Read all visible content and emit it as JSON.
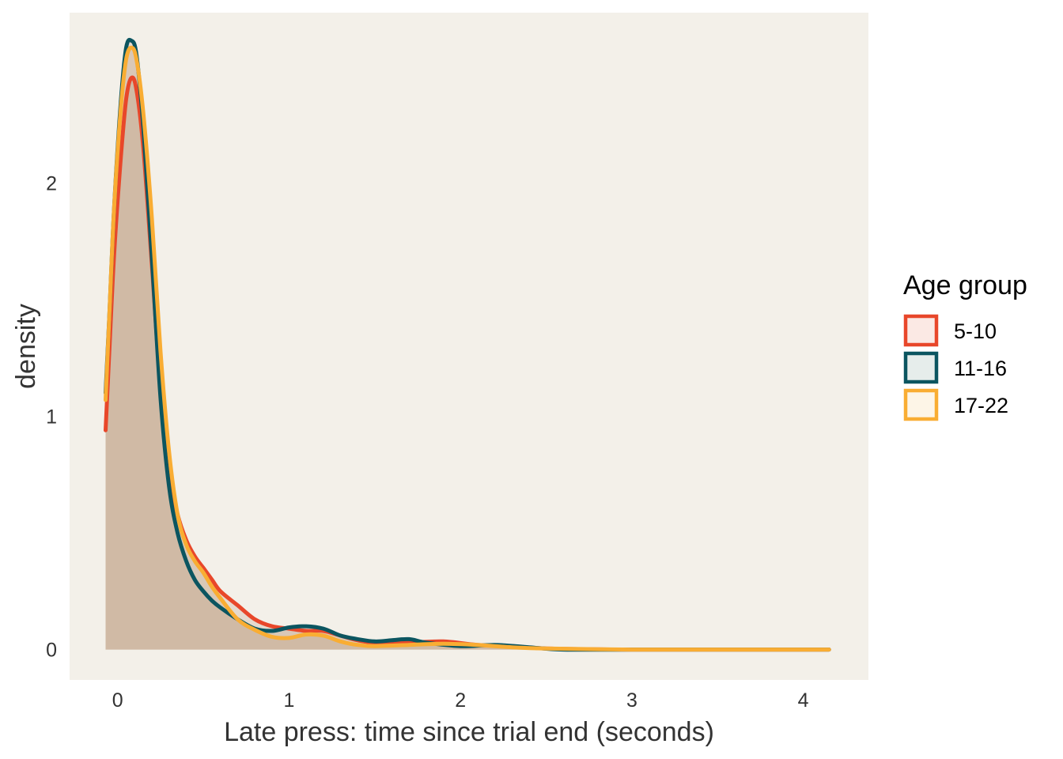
{
  "chart_data": {
    "type": "area",
    "xlabel": "Late press: time since trial end (seconds)",
    "ylabel": "density",
    "xlim": [
      -0.28,
      4.38
    ],
    "ylim": [
      -0.13,
      2.73
    ],
    "x_ticks": [
      0,
      1,
      2,
      3,
      4
    ],
    "y_ticks": [
      0,
      1,
      2
    ],
    "grid": false,
    "panel_background": "#f3f0e9",
    "legend": {
      "title": "Age group",
      "position": "right"
    },
    "series": [
      {
        "name": "5-10",
        "color": "#e8472a",
        "fill": "#fbe9e4",
        "points": [
          [
            -0.07,
            0.94
          ],
          [
            -0.05,
            1.25
          ],
          [
            -0.02,
            1.7
          ],
          [
            0.02,
            2.12
          ],
          [
            0.05,
            2.36
          ],
          [
            0.08,
            2.45
          ],
          [
            0.11,
            2.4
          ],
          [
            0.15,
            2.15
          ],
          [
            0.2,
            1.65
          ],
          [
            0.25,
            1.12
          ],
          [
            0.3,
            0.78
          ],
          [
            0.35,
            0.58
          ],
          [
            0.4,
            0.47
          ],
          [
            0.45,
            0.4
          ],
          [
            0.5,
            0.35
          ],
          [
            0.55,
            0.3
          ],
          [
            0.6,
            0.25
          ],
          [
            0.7,
            0.19
          ],
          [
            0.8,
            0.13
          ],
          [
            0.9,
            0.1
          ],
          [
            1.0,
            0.09
          ],
          [
            1.1,
            0.08
          ],
          [
            1.2,
            0.08
          ],
          [
            1.3,
            0.06
          ],
          [
            1.4,
            0.04
          ],
          [
            1.5,
            0.03
          ],
          [
            1.7,
            0.03
          ],
          [
            1.9,
            0.035
          ],
          [
            2.1,
            0.02
          ],
          [
            2.3,
            0.015
          ],
          [
            2.5,
            0.005
          ],
          [
            3.0,
            0.0
          ],
          [
            3.5,
            0.0
          ],
          [
            4.0,
            0.0
          ],
          [
            4.15,
            0.0
          ]
        ]
      },
      {
        "name": "11-16",
        "color": "#0b5560",
        "fill": "#e6edeb",
        "points": [
          [
            -0.07,
            1.1
          ],
          [
            -0.05,
            1.4
          ],
          [
            -0.02,
            1.9
          ],
          [
            0.02,
            2.36
          ],
          [
            0.05,
            2.58
          ],
          [
            0.08,
            2.61
          ],
          [
            0.11,
            2.55
          ],
          [
            0.15,
            2.24
          ],
          [
            0.2,
            1.68
          ],
          [
            0.25,
            1.08
          ],
          [
            0.3,
            0.7
          ],
          [
            0.35,
            0.5
          ],
          [
            0.4,
            0.38
          ],
          [
            0.45,
            0.3
          ],
          [
            0.5,
            0.25
          ],
          [
            0.55,
            0.21
          ],
          [
            0.6,
            0.18
          ],
          [
            0.7,
            0.13
          ],
          [
            0.8,
            0.09
          ],
          [
            0.9,
            0.08
          ],
          [
            1.0,
            0.095
          ],
          [
            1.1,
            0.1
          ],
          [
            1.2,
            0.09
          ],
          [
            1.3,
            0.06
          ],
          [
            1.4,
            0.045
          ],
          [
            1.5,
            0.035
          ],
          [
            1.6,
            0.04
          ],
          [
            1.7,
            0.045
          ],
          [
            1.8,
            0.03
          ],
          [
            2.0,
            0.015
          ],
          [
            2.2,
            0.02
          ],
          [
            2.4,
            0.01
          ],
          [
            2.6,
            0.0
          ],
          [
            3.0,
            0.0
          ],
          [
            3.5,
            0.0
          ],
          [
            4.0,
            0.0
          ],
          [
            4.15,
            0.0
          ]
        ]
      },
      {
        "name": "17-22",
        "color": "#f9ad33",
        "fill": "#fdf5e7",
        "points": [
          [
            -0.07,
            1.07
          ],
          [
            -0.05,
            1.4
          ],
          [
            -0.02,
            1.9
          ],
          [
            0.02,
            2.33
          ],
          [
            0.05,
            2.53
          ],
          [
            0.08,
            2.58
          ],
          [
            0.11,
            2.53
          ],
          [
            0.15,
            2.3
          ],
          [
            0.2,
            1.85
          ],
          [
            0.25,
            1.28
          ],
          [
            0.3,
            0.85
          ],
          [
            0.35,
            0.58
          ],
          [
            0.4,
            0.45
          ],
          [
            0.45,
            0.38
          ],
          [
            0.5,
            0.33
          ],
          [
            0.55,
            0.27
          ],
          [
            0.6,
            0.22
          ],
          [
            0.7,
            0.13
          ],
          [
            0.8,
            0.085
          ],
          [
            0.9,
            0.055
          ],
          [
            1.0,
            0.05
          ],
          [
            1.1,
            0.065
          ],
          [
            1.2,
            0.06
          ],
          [
            1.3,
            0.035
          ],
          [
            1.4,
            0.02
          ],
          [
            1.5,
            0.015
          ],
          [
            1.7,
            0.02
          ],
          [
            1.9,
            0.025
          ],
          [
            2.1,
            0.02
          ],
          [
            2.3,
            0.01
          ],
          [
            2.5,
            0.005
          ],
          [
            3.0,
            0.0
          ],
          [
            3.5,
            0.0
          ],
          [
            4.0,
            0.0
          ],
          [
            4.15,
            0.0
          ]
        ]
      }
    ]
  }
}
